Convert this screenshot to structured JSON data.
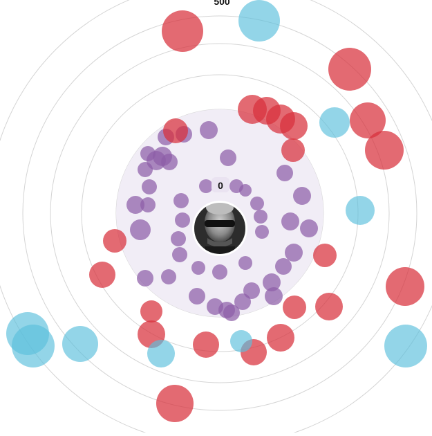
{
  "chart_data": {
    "type": "scatter",
    "title": "",
    "radial_tick_labels": [
      "0",
      "500"
    ],
    "colors": {
      "purple": "#8e5ea8",
      "red": "#d8313b",
      "blue": "#5bbfdc",
      "halo": "#f1edf6",
      "ring": "#d4d4d4"
    },
    "center_image": "profile-avatar",
    "grid": true,
    "series": [
      {
        "color": "purple",
        "points": [
          [
            240,
            198,
            12
          ],
          [
            245,
            234,
            12
          ],
          [
            235,
            226,
            14
          ],
          [
            226,
            232,
            14
          ],
          [
            214,
            222,
            11
          ],
          [
            210,
            245,
            11
          ],
          [
            216,
            270,
            11
          ],
          [
            196,
            296,
            13
          ],
          [
            214,
            296,
            11
          ],
          [
            203,
            332,
            15
          ],
          [
            210,
            402,
            12
          ],
          [
            244,
            400,
            11
          ],
          [
            266,
            194,
            12
          ],
          [
            302,
            188,
            13
          ],
          [
            330,
            228,
            12
          ],
          [
            262,
            290,
            11
          ],
          [
            264,
            318,
            11
          ],
          [
            258,
            345,
            11
          ],
          [
            260,
            368,
            11
          ],
          [
            287,
            387,
            10
          ],
          [
            318,
            393,
            11
          ],
          [
            355,
            380,
            10
          ],
          [
            377,
            313,
            10
          ],
          [
            379,
            335,
            10
          ],
          [
            372,
            294,
            10
          ],
          [
            298,
            269,
            10
          ],
          [
            342,
            269,
            10
          ],
          [
            355,
            275,
            9
          ],
          [
            412,
            250,
            12
          ],
          [
            437,
            283,
            13
          ],
          [
            420,
            320,
            13
          ],
          [
            447,
            330,
            13
          ],
          [
            425,
            365,
            13
          ],
          [
            410,
            385,
            12
          ],
          [
            393,
            408,
            13
          ],
          [
            396,
            428,
            13
          ],
          [
            364,
            420,
            12
          ],
          [
            351,
            436,
            12
          ],
          [
            328,
            448,
            12
          ],
          [
            311,
            443,
            12
          ],
          [
            335,
            452,
            12
          ],
          [
            285,
            428,
            12
          ]
        ]
      },
      {
        "color": "red",
        "points": [
          [
            264,
            45,
            30
          ],
          [
            506,
            100,
            31
          ],
          [
            365,
            158,
            21
          ],
          [
            386,
            160,
            20
          ],
          [
            406,
            172,
            21
          ],
          [
            425,
            182,
            20
          ],
          [
            424,
            217,
            17
          ],
          [
            532,
            174,
            26
          ],
          [
            556,
            217,
            28
          ],
          [
            254,
            189,
            18
          ],
          [
            166,
            348,
            17
          ],
          [
            148,
            397,
            19
          ],
          [
            470,
            369,
            17
          ],
          [
            476,
            443,
            20
          ],
          [
            426,
            444,
            17
          ],
          [
            219,
            450,
            16
          ],
          [
            219,
            483,
            20
          ],
          [
            298,
            498,
            19
          ],
          [
            367,
            509,
            19
          ],
          [
            406,
            488,
            20
          ],
          [
            586,
            414,
            28
          ],
          [
            253,
            583,
            27
          ]
        ]
      },
      {
        "color": "blue",
        "points": [
          [
            375,
            30,
            30
          ],
          [
            484,
            177,
            22
          ],
          [
            521,
            304,
            21
          ],
          [
            233,
            511,
            20
          ],
          [
            349,
            493,
            16
          ],
          [
            116,
            497,
            26
          ],
          [
            40,
            482,
            31
          ],
          [
            48,
            500,
            31
          ],
          [
            587,
            500,
            31
          ]
        ]
      }
    ]
  }
}
